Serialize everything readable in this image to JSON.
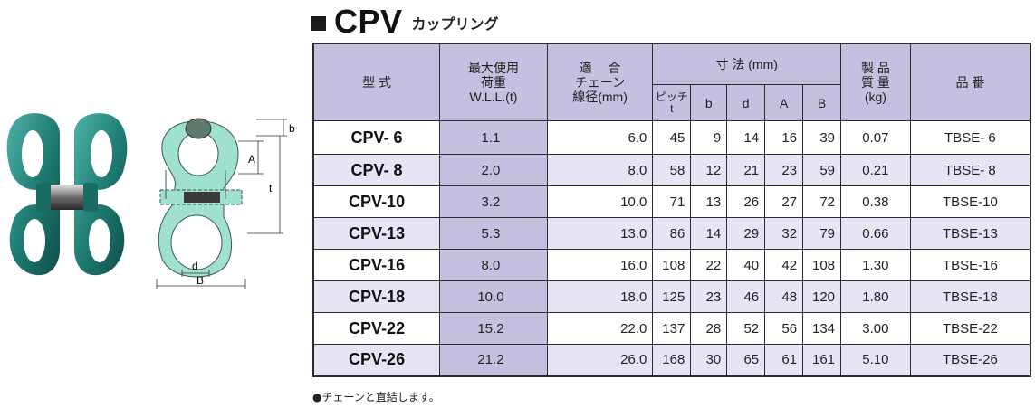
{
  "title": {
    "main": "CPV",
    "sub": "カップリング"
  },
  "diagram_labels": {
    "b": "b",
    "A": "A",
    "t": "t",
    "d": "d",
    "B": "B"
  },
  "table": {
    "headers": {
      "model": "型 式",
      "wll": [
        "最大使用",
        "荷重",
        "W.L.L.(t)"
      ],
      "chain": [
        "適　 合",
        "チェーン",
        "線径(mm)"
      ],
      "dims": "寸 法 (mm)",
      "pitch": [
        "ピッチ",
        "t"
      ],
      "b": "b",
      "d": "d",
      "A": "A",
      "B": "B",
      "mass": [
        "製 品",
        "質 量",
        "(kg)"
      ],
      "part": "品 番"
    },
    "rows": [
      {
        "model": "CPV- 6",
        "wll": "1.1",
        "chain": "6.0",
        "t": "45",
        "b": "9",
        "d": "14",
        "A": "16",
        "B": "39",
        "mass": "0.07",
        "part": "TBSE- 6"
      },
      {
        "model": "CPV- 8",
        "wll": "2.0",
        "chain": "8.0",
        "t": "58",
        "b": "12",
        "d": "21",
        "A": "23",
        "B": "59",
        "mass": "0.21",
        "part": "TBSE- 8"
      },
      {
        "model": "CPV-10",
        "wll": "3.2",
        "chain": "10.0",
        "t": "71",
        "b": "13",
        "d": "26",
        "A": "27",
        "B": "72",
        "mass": "0.38",
        "part": "TBSE-10"
      },
      {
        "model": "CPV-13",
        "wll": "5.3",
        "chain": "13.0",
        "t": "86",
        "b": "14",
        "d": "29",
        "A": "32",
        "B": "79",
        "mass": "0.66",
        "part": "TBSE-13"
      },
      {
        "model": "CPV-16",
        "wll": "8.0",
        "chain": "16.0",
        "t": "108",
        "b": "22",
        "d": "40",
        "A": "42",
        "B": "108",
        "mass": "1.30",
        "part": "TBSE-16"
      },
      {
        "model": "CPV-18",
        "wll": "10.0",
        "chain": "18.0",
        "t": "125",
        "b": "23",
        "d": "46",
        "A": "48",
        "B": "120",
        "mass": "1.80",
        "part": "TBSE-18"
      },
      {
        "model": "CPV-22",
        "wll": "15.2",
        "chain": "22.0",
        "t": "137",
        "b": "28",
        "d": "52",
        "A": "56",
        "B": "134",
        "mass": "3.00",
        "part": "TBSE-22"
      },
      {
        "model": "CPV-26",
        "wll": "21.2",
        "chain": "26.0",
        "t": "168",
        "b": "30",
        "d": "65",
        "A": "61",
        "B": "161",
        "mass": "5.10",
        "part": "TBSE-26"
      }
    ]
  },
  "note": "●チェーンと直結します。",
  "colors": {
    "header_bg": "#c5bfe0",
    "alt_row_bg": "#e8e4f4",
    "product_green": "#2f8f86",
    "diagram_fill": "#9fe0cf"
  }
}
